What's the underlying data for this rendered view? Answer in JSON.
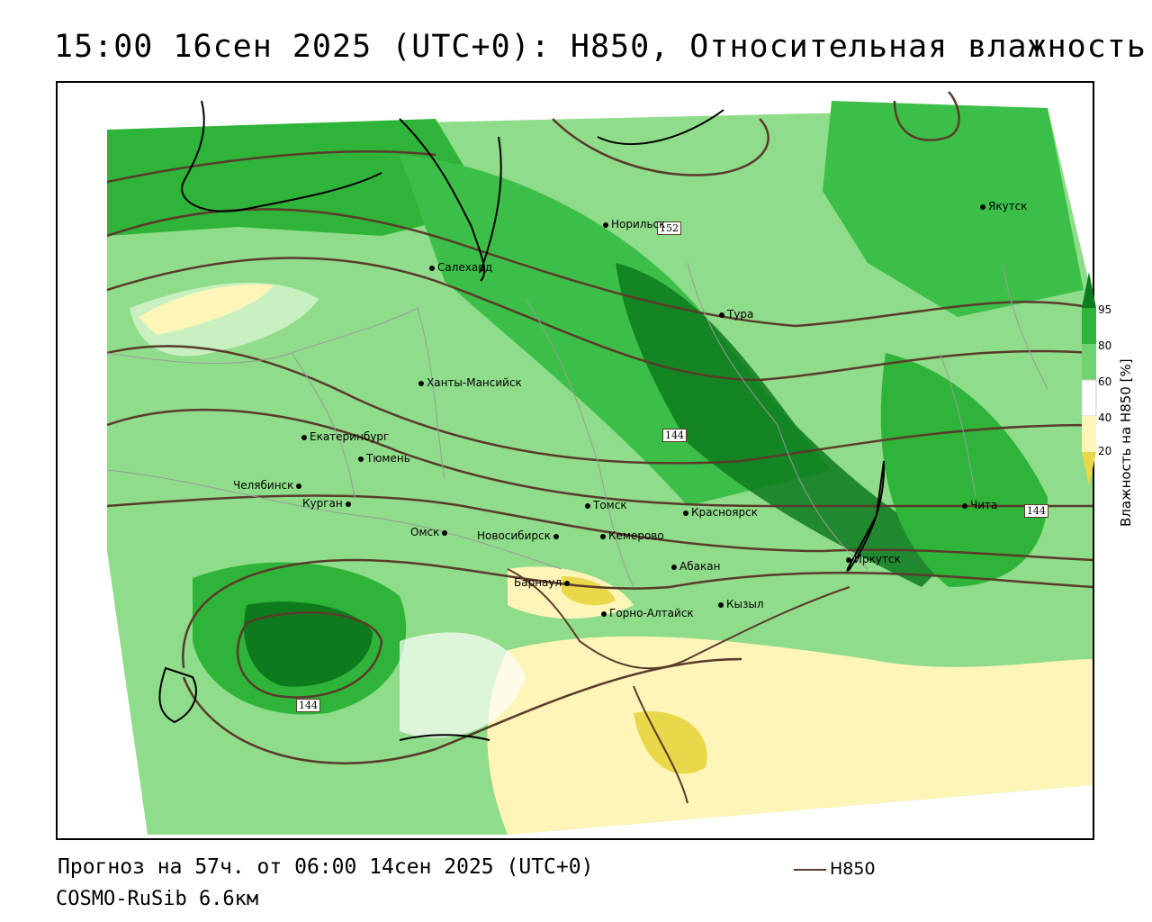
{
  "title": "15:00 16сен 2025 (UTC+0): H850, Относительная влажность",
  "footer": {
    "forecast": "Прогноз на 57ч. от 06:00 14сен 2025 (UTC+0)",
    "model": "COSMO-RuSib 6.6км",
    "line_legend": "H850"
  },
  "legend": {
    "title": "Влажность на H850 [%]",
    "ticks": [
      "95",
      "80",
      "60",
      "40",
      "20"
    ],
    "colors": {
      "very_high": "#0d7a1d",
      "high": "#2fb43a",
      "mid": "#6fd36f",
      "low": "#c8f0c0",
      "dry": "#fff5b8",
      "very_dry": "#e8d84a"
    }
  },
  "contour_labels": [
    "152",
    "144",
    "144",
    "144"
  ],
  "cities": [
    {
      "name": "Якутск"
    },
    {
      "name": "Норильск"
    },
    {
      "name": "Салехард"
    },
    {
      "name": "Тура"
    },
    {
      "name": "Ханты-Мансийск"
    },
    {
      "name": "Екатеринбург"
    },
    {
      "name": "Тюмень"
    },
    {
      "name": "Челябинск"
    },
    {
      "name": "Курган"
    },
    {
      "name": "Омск"
    },
    {
      "name": "Новосибирск"
    },
    {
      "name": "Томск"
    },
    {
      "name": "Кемерово"
    },
    {
      "name": "Красноярск"
    },
    {
      "name": "Абакан"
    },
    {
      "name": "Барнаул"
    },
    {
      "name": "Горно-Алтайск"
    },
    {
      "name": "Кызыл"
    },
    {
      "name": "Иркутск"
    },
    {
      "name": "Чита"
    }
  ]
}
